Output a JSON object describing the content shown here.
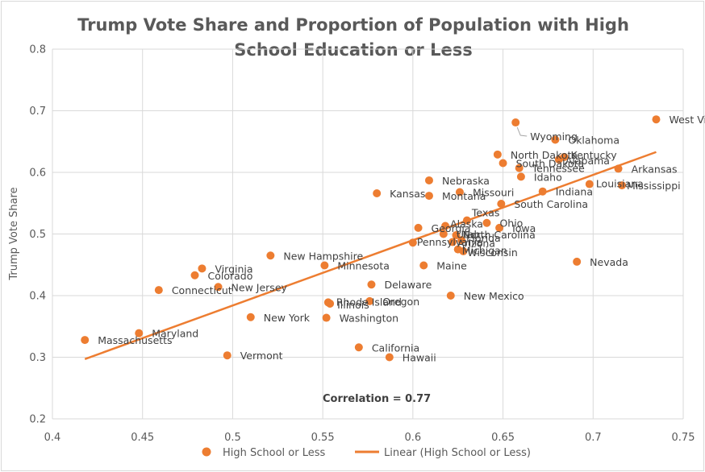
{
  "chart_data": {
    "type": "scatter",
    "title": "Trump Vote Share and Proportion of Population with High School Education or Less",
    "title_lines": [
      "Trump Vote Share and Proportion of Population with High",
      "School Education or Less"
    ],
    "xlabel": "",
    "ylabel": "Trump Vote Share",
    "xlim": [
      0.4,
      0.75
    ],
    "ylim": [
      0.2,
      0.8
    ],
    "xticks": [
      "0.4",
      "0.45",
      "0.5",
      "0.55",
      "0.6",
      "0.65",
      "0.7",
      "0.75"
    ],
    "yticks": [
      "0.2",
      "0.3",
      "0.4",
      "0.5",
      "0.6",
      "0.7",
      "0.8"
    ],
    "grid": true,
    "annotation": "Correlation = 0.77",
    "series": [
      {
        "name": "High School or Less",
        "color": "#ED7D31",
        "points": [
          {
            "label": "West Virginia",
            "x": 0.735,
            "y": 0.686
          },
          {
            "label": "Wyoming",
            "x": 0.657,
            "y": 0.681
          },
          {
            "label": "Oklahoma",
            "x": 0.679,
            "y": 0.653
          },
          {
            "label": "North Dakota",
            "x": 0.647,
            "y": 0.629
          },
          {
            "label": "Kentucky",
            "x": 0.684,
            "y": 0.625
          },
          {
            "label": "Alabama",
            "x": 0.681,
            "y": 0.621
          },
          {
            "label": "South Dakota",
            "x": 0.65,
            "y": 0.615
          },
          {
            "label": "Tennessee",
            "x": 0.659,
            "y": 0.607
          },
          {
            "label": "Arkansas",
            "x": 0.714,
            "y": 0.606
          },
          {
            "label": "Idaho",
            "x": 0.66,
            "y": 0.593
          },
          {
            "label": "Nebraska",
            "x": 0.609,
            "y": 0.587
          },
          {
            "label": "Louisiana",
            "x": 0.698,
            "y": 0.581
          },
          {
            "label": "Mississippi",
            "x": 0.716,
            "y": 0.579
          },
          {
            "label": "Indiana",
            "x": 0.672,
            "y": 0.569
          },
          {
            "label": "Missouri",
            "x": 0.626,
            "y": 0.568
          },
          {
            "label": "Kansas",
            "x": 0.58,
            "y": 0.566
          },
          {
            "label": "Montana",
            "x": 0.609,
            "y": 0.562
          },
          {
            "label": "South Carolina",
            "x": 0.649,
            "y": 0.549
          },
          {
            "label": "Texas",
            "x": 0.63,
            "y": 0.522
          },
          {
            "label": "Ohio",
            "x": 0.641,
            "y": 0.518
          },
          {
            "label": "Alaska",
            "x": 0.618,
            "y": 0.513
          },
          {
            "label": "Georgia",
            "x": 0.603,
            "y": 0.51
          },
          {
            "label": "Iowa",
            "x": 0.648,
            "y": 0.51
          },
          {
            "label": "Utah",
            "x": 0.617,
            "y": 0.5
          },
          {
            "label": "North Carolina",
            "x": 0.624,
            "y": 0.498
          },
          {
            "label": "Pennsylvania",
            "x": 0.6,
            "y": 0.486
          },
          {
            "label": "Arizona",
            "x": 0.622,
            "y": 0.487
          },
          {
            "label": "Florida",
            "x": 0.627,
            "y": 0.49
          },
          {
            "label": "Michigan",
            "x": 0.625,
            "y": 0.475
          },
          {
            "label": "Wisconsin",
            "x": 0.628,
            "y": 0.472
          },
          {
            "label": "New Hampshire",
            "x": 0.521,
            "y": 0.465
          },
          {
            "label": "Nevada",
            "x": 0.691,
            "y": 0.455
          },
          {
            "label": "Minnesota",
            "x": 0.551,
            "y": 0.449
          },
          {
            "label": "Maine",
            "x": 0.606,
            "y": 0.449
          },
          {
            "label": "Virginia",
            "x": 0.483,
            "y": 0.444
          },
          {
            "label": "Colorado",
            "x": 0.479,
            "y": 0.433
          },
          {
            "label": "Delaware",
            "x": 0.577,
            "y": 0.418
          },
          {
            "label": "New Jersey",
            "x": 0.492,
            "y": 0.414
          },
          {
            "label": "Connecticut",
            "x": 0.459,
            "y": 0.409
          },
          {
            "label": "New Mexico",
            "x": 0.621,
            "y": 0.4
          },
          {
            "label": "Oregon",
            "x": 0.576,
            "y": 0.391
          },
          {
            "label": "Rhode Island",
            "x": 0.553,
            "y": 0.389
          },
          {
            "label": "Illinois",
            "x": 0.554,
            "y": 0.387
          },
          {
            "label": "New York",
            "x": 0.51,
            "y": 0.365
          },
          {
            "label": "Washington",
            "x": 0.552,
            "y": 0.364
          },
          {
            "label": "Maryland",
            "x": 0.448,
            "y": 0.339
          },
          {
            "label": "Massachusetts",
            "x": 0.418,
            "y": 0.328
          },
          {
            "label": "California",
            "x": 0.57,
            "y": 0.316
          },
          {
            "label": "Vermont",
            "x": 0.497,
            "y": 0.303
          },
          {
            "label": "Hawaii",
            "x": 0.587,
            "y": 0.3
          }
        ]
      }
    ],
    "trendline": {
      "name": "Linear (High School or Less)",
      "color": "#ED7D31",
      "x": [
        0.418,
        0.735
      ],
      "y": [
        0.297,
        0.633
      ]
    }
  },
  "legend": {
    "scatter_label": "High School or Less",
    "trend_label": "Linear (High School or Less)"
  }
}
